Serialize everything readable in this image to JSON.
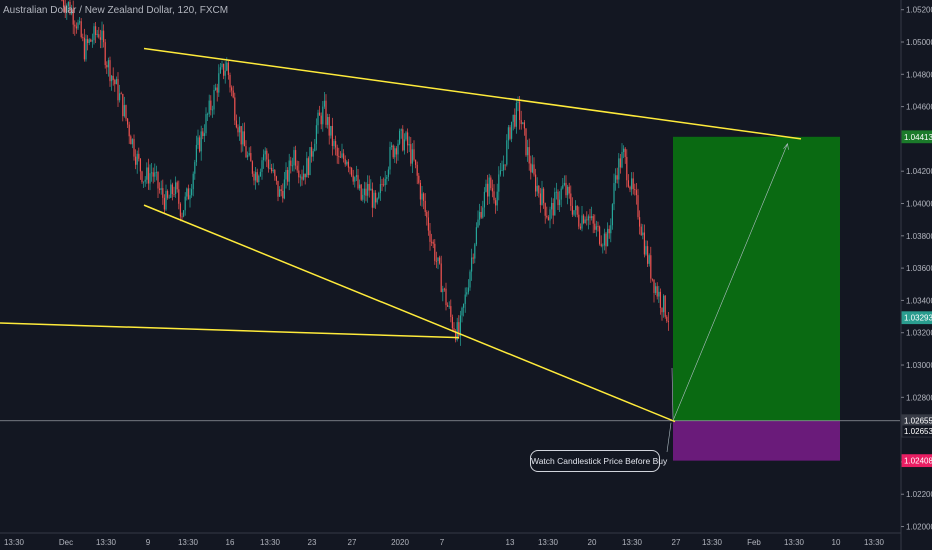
{
  "header": {
    "symbol_title": "Australian Dollar / New Zealand Dollar, 120, FXCM"
  },
  "annotation": {
    "text": "Watch Candlestick  Price Before Buy"
  },
  "colors": {
    "background": "#131722",
    "candle_up": "#26a69a",
    "candle_down": "#ef5350",
    "trendline": "#ffeb3b",
    "profit_zone": "#0a6a12",
    "loss_zone": "#6a1b7a",
    "projection": "#b0bec5"
  },
  "chart_data": {
    "type": "candlestick",
    "title": "",
    "xlabel": "",
    "ylabel": "",
    "ylim": [
      1.0196,
      1.0526
    ],
    "grid": false,
    "y_ticks": [
      "1.05200",
      "1.05000",
      "1.04800",
      "1.04600",
      "1.04200",
      "1.04000",
      "1.03800",
      "1.03600",
      "1.03400",
      "1.03200",
      "1.03000",
      "1.02800",
      "1.02400",
      "1.02200",
      "1.02000"
    ],
    "x_ticks": [
      "13:30",
      "Dec",
      "13:30",
      "9",
      "13:30",
      "16",
      "13:30",
      "23",
      "27",
      "2020",
      "7",
      "13",
      "13:30",
      "20",
      "13:30",
      "27",
      "13:30",
      "Feb",
      "13:30",
      "10",
      "13:30"
    ],
    "price_badges": [
      {
        "label": "1.04413",
        "value": 1.04413,
        "color": "#1b7a2a"
      },
      {
        "label": "1.03293",
        "value": 1.03293,
        "color": "#2a9d8f"
      },
      {
        "label": "1.02655",
        "value": 1.02655,
        "color": "#363a45"
      },
      {
        "label": "1.02653",
        "value": 1.02653,
        "color": "#131722"
      },
      {
        "label": "1.02408",
        "value": 1.02408,
        "color": "#e91e63"
      }
    ],
    "horizontal_line": 1.02655,
    "price_path": [
      1.0526,
      1.0522,
      1.0512,
      1.0495,
      1.0502,
      1.0507,
      1.0488,
      1.0475,
      1.0462,
      1.0445,
      1.0428,
      1.0415,
      1.042,
      1.0408,
      1.04,
      1.041,
      1.0395,
      1.0408,
      1.0432,
      1.0448,
      1.0462,
      1.0478,
      1.0486,
      1.046,
      1.044,
      1.0425,
      1.0418,
      1.0432,
      1.042,
      1.0405,
      1.0415,
      1.0432,
      1.0418,
      1.0425,
      1.0448,
      1.0458,
      1.044,
      1.0425,
      1.043,
      1.0418,
      1.0402,
      1.041,
      1.0395,
      1.0418,
      1.0432,
      1.044,
      1.0438,
      1.0425,
      1.0405,
      1.0385,
      1.0365,
      1.0345,
      1.0328,
      1.0318,
      1.0345,
      1.0375,
      1.0398,
      1.0412,
      1.0405,
      1.0425,
      1.045,
      1.0458,
      1.0435,
      1.0415,
      1.0405,
      1.0392,
      1.0402,
      1.041,
      1.04,
      1.039,
      1.0395,
      1.0385,
      1.038,
      1.0378,
      1.042,
      1.043,
      1.041,
      1.0395,
      1.037,
      1.0352,
      1.034,
      1.033
    ],
    "trendlines": [
      {
        "from": {
          "x": 0.0,
          "y": 1.0326
        },
        "to": {
          "x": 51.0,
          "y": 1.0317
        }
      },
      {
        "from": {
          "x": 16.0,
          "y": 1.0496
        },
        "to": {
          "x": 89.0,
          "y": 1.044
        }
      },
      {
        "from": {
          "x": 16.0,
          "y": 1.0399
        },
        "to": {
          "x": 75.0,
          "y": 1.0265
        }
      }
    ],
    "long_position": {
      "entry": 1.02655,
      "target": 1.04413,
      "stop": 1.02408,
      "start_x": 74.0,
      "end_x": 94.0
    }
  }
}
